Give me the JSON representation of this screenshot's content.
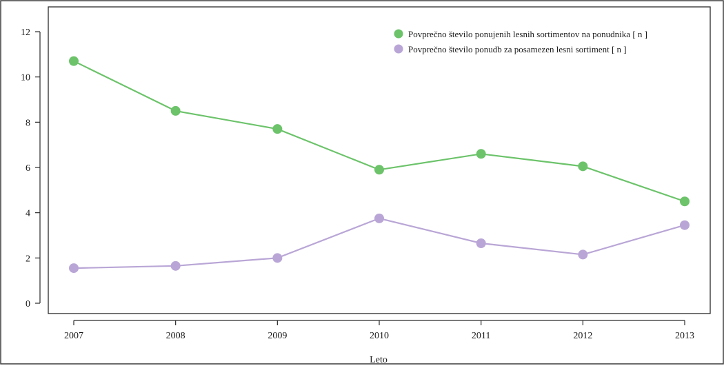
{
  "chart_data": {
    "type": "line",
    "xlabel": "Leto",
    "ylabel": "",
    "categories": [
      "2007",
      "2008",
      "2009",
      "2010",
      "2011",
      "2012",
      "2013"
    ],
    "ylim": [
      0,
      12
    ],
    "yticks": [
      0,
      2,
      4,
      6,
      8,
      10,
      12
    ],
    "grid": false,
    "legend_position": "top-right",
    "series": [
      {
        "name": "Povprečno število ponujenih lesnih sortimentov na ponudnika [ n ]",
        "color": "#6cc36a",
        "values": [
          10.7,
          8.5,
          7.7,
          5.9,
          6.6,
          6.05,
          4.5
        ]
      },
      {
        "name": "Povprečno število ponudb za posamezen lesni sortiment [ n ]",
        "color": "#b9a6d6",
        "values": [
          1.55,
          1.65,
          2.0,
          3.75,
          2.65,
          2.15,
          3.45
        ]
      }
    ]
  }
}
